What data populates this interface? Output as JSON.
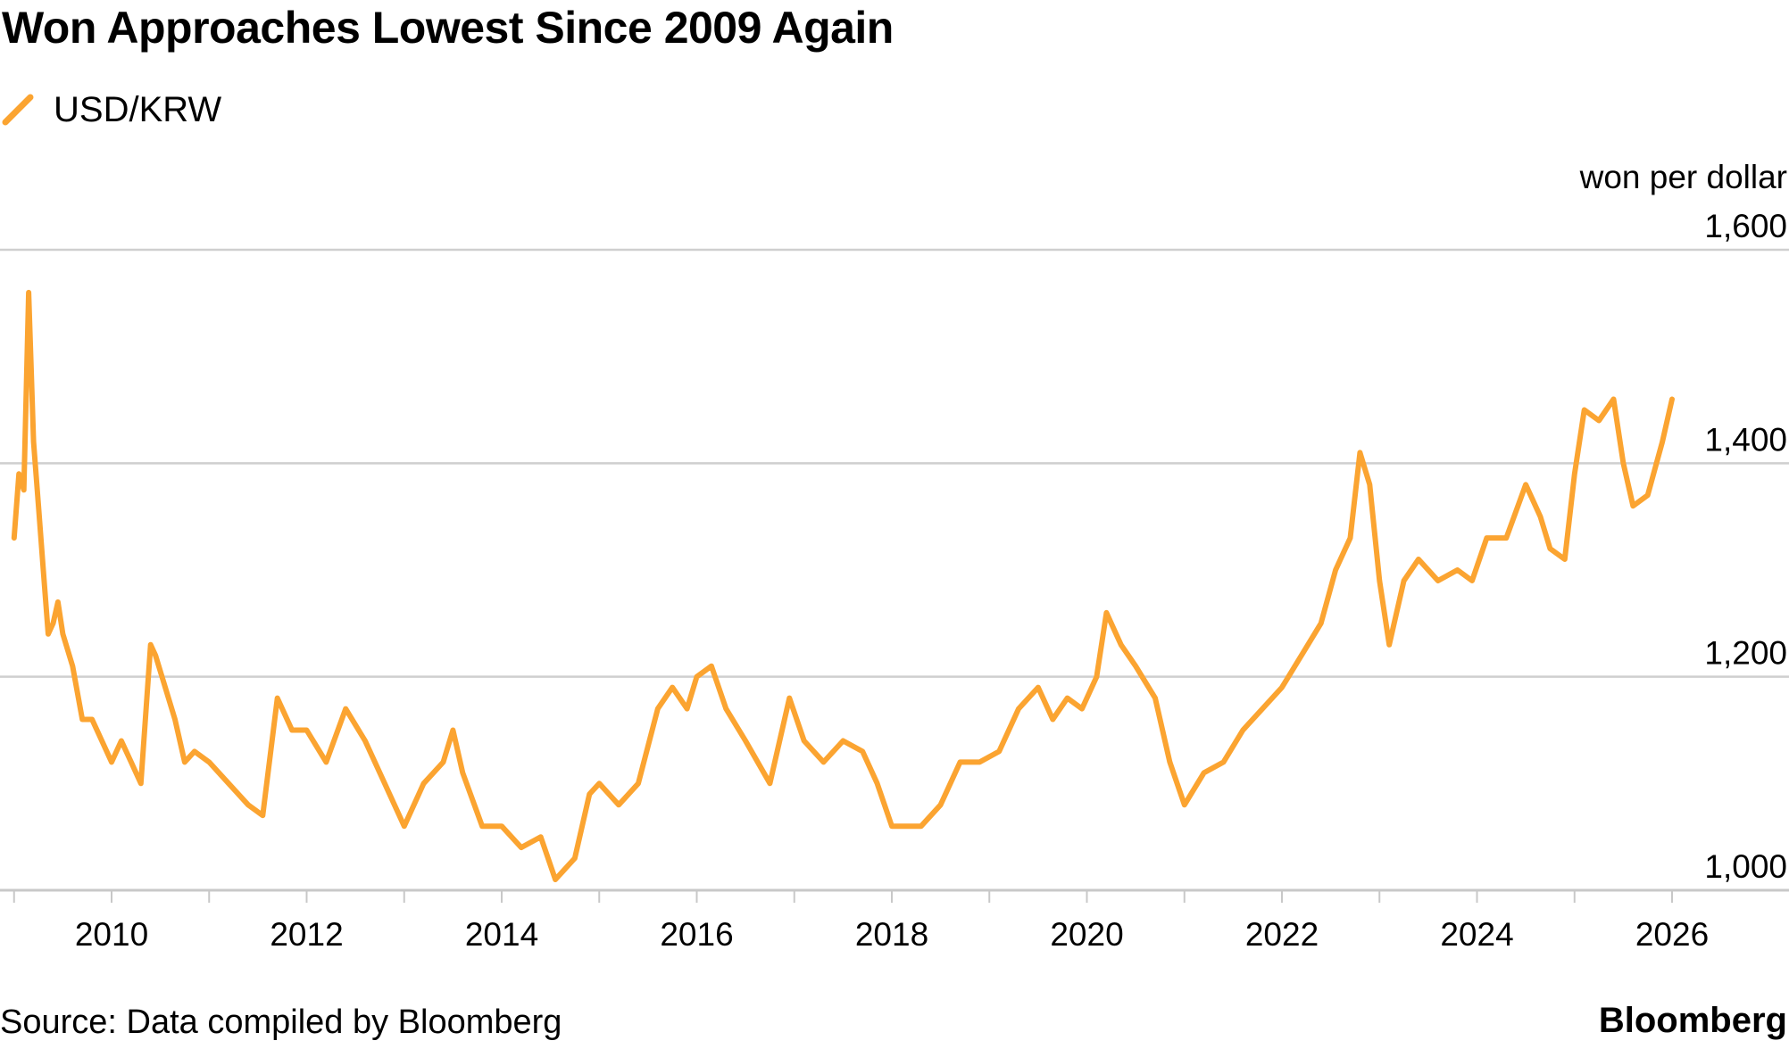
{
  "title": "Won Approaches Lowest Since 2009 Again",
  "legend": {
    "label": "USD/KRW"
  },
  "unit_label": "won per dollar",
  "footer": {
    "source": "Source: Data compiled by Bloomberg",
    "brand": "Bloomberg"
  },
  "colors": {
    "series": "#FBA431",
    "grid": "#cfcfcf",
    "axis": "#c8c8c8"
  },
  "chart_data": {
    "type": "line",
    "title": "Won Approaches Lowest Since 2009 Again",
    "ylabel": "won per dollar",
    "xlabel": "",
    "ylim": [
      1000,
      1600
    ],
    "xlim": [
      2009.0,
      2026.9
    ],
    "y_ticks": [
      1000,
      1200,
      1400,
      1600
    ],
    "y_tick_labels": [
      "1,000",
      "1,200",
      "1,400",
      "1,600"
    ],
    "x_ticks": [
      2010,
      2012,
      2014,
      2016,
      2018,
      2020,
      2022,
      2024,
      2026
    ],
    "x_tick_labels": [
      "2010",
      "2012",
      "2014",
      "2016",
      "2018",
      "2020",
      "2022",
      "2024",
      "2026"
    ],
    "grid": true,
    "legend_position": "top-left",
    "series": [
      {
        "name": "USD/KRW",
        "x": [
          2009.0,
          2009.05,
          2009.1,
          2009.15,
          2009.2,
          2009.25,
          2009.3,
          2009.35,
          2009.4,
          2009.45,
          2009.5,
          2009.6,
          2009.7,
          2009.8,
          2009.9,
          2010.0,
          2010.1,
          2010.2,
          2010.3,
          2010.4,
          2010.45,
          2010.55,
          2010.65,
          2010.75,
          2010.85,
          2011.0,
          2011.2,
          2011.4,
          2011.55,
          2011.7,
          2011.85,
          2012.0,
          2012.2,
          2012.4,
          2012.6,
          2012.8,
          2013.0,
          2013.2,
          2013.4,
          2013.5,
          2013.6,
          2013.8,
          2014.0,
          2014.2,
          2014.4,
          2014.55,
          2014.75,
          2014.9,
          2015.0,
          2015.2,
          2015.4,
          2015.6,
          2015.75,
          2015.9,
          2016.0,
          2016.15,
          2016.3,
          2016.5,
          2016.75,
          2016.95,
          2017.1,
          2017.3,
          2017.5,
          2017.7,
          2017.85,
          2018.0,
          2018.3,
          2018.5,
          2018.7,
          2018.9,
          2019.1,
          2019.3,
          2019.5,
          2019.65,
          2019.8,
          2019.95,
          2020.1,
          2020.2,
          2020.35,
          2020.5,
          2020.7,
          2020.85,
          2021.0,
          2021.2,
          2021.4,
          2021.6,
          2021.8,
          2022.0,
          2022.2,
          2022.4,
          2022.55,
          2022.7,
          2022.8,
          2022.9,
          2023.0,
          2023.1,
          2023.25,
          2023.4,
          2023.6,
          2023.8,
          2023.95,
          2024.1,
          2024.3,
          2024.5,
          2024.65,
          2024.75,
          2024.9,
          2025.0,
          2025.1,
          2025.25,
          2025.4,
          2025.5,
          2025.6,
          2025.75,
          2025.9,
          2026.0
        ],
        "values": [
          1330,
          1390,
          1375,
          1560,
          1420,
          1360,
          1300,
          1240,
          1250,
          1270,
          1240,
          1210,
          1160,
          1160,
          1140,
          1120,
          1140,
          1120,
          1100,
          1230,
          1220,
          1190,
          1160,
          1120,
          1130,
          1120,
          1100,
          1080,
          1070,
          1180,
          1150,
          1150,
          1120,
          1170,
          1140,
          1100,
          1060,
          1100,
          1120,
          1150,
          1110,
          1060,
          1060,
          1040,
          1050,
          1010,
          1030,
          1090,
          1100,
          1080,
          1100,
          1170,
          1190,
          1170,
          1200,
          1210,
          1170,
          1140,
          1100,
          1180,
          1140,
          1120,
          1140,
          1130,
          1100,
          1060,
          1060,
          1080,
          1120,
          1120,
          1130,
          1170,
          1190,
          1160,
          1180,
          1170,
          1200,
          1260,
          1230,
          1210,
          1180,
          1120,
          1080,
          1110,
          1120,
          1150,
          1170,
          1190,
          1220,
          1250,
          1300,
          1330,
          1410,
          1380,
          1290,
          1230,
          1290,
          1310,
          1290,
          1300,
          1290,
          1330,
          1330,
          1380,
          1350,
          1320,
          1310,
          1390,
          1450,
          1440,
          1460,
          1400,
          1360,
          1370,
          1420,
          1460
        ]
      }
    ]
  }
}
